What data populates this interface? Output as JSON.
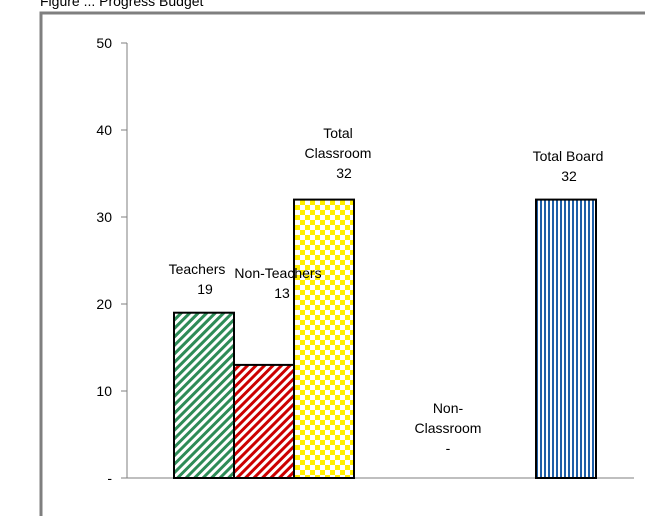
{
  "page": {
    "cut_title": "Figure ... Progress Budget"
  },
  "chart_data": {
    "type": "bar",
    "categories": [
      "Teachers",
      "Non-Teachers",
      "Total Classroom",
      "Non-Classroom",
      "Total Board"
    ],
    "values": [
      19,
      13,
      32,
      0,
      32
    ],
    "value_labels": [
      "19",
      "13",
      "32",
      "-",
      "32"
    ],
    "category_label_lines": [
      [
        "Teachers"
      ],
      [
        "Non-Teachers"
      ],
      [
        "Total",
        "Classroom"
      ],
      [
        "Non-",
        "Classroom"
      ],
      [
        "Total Board"
      ]
    ],
    "y_ticks": [
      0,
      10,
      20,
      30,
      40,
      50
    ],
    "y_tick_labels": [
      "-",
      "10",
      "20",
      "30",
      "40",
      "50"
    ],
    "ylim": [
      0,
      50
    ],
    "grid": false,
    "legend": "none",
    "colors": {
      "teachers": "#2e8b57",
      "non_teachers": "#cc0000",
      "total_classroom": "#ffee00",
      "total_board": "#1f5fa8",
      "frame": "#7f7f7f"
    },
    "patterns": [
      "diagonal-stripes",
      "diagonal-stripes",
      "checkerboard",
      "none",
      "vertical-stripes"
    ]
  }
}
